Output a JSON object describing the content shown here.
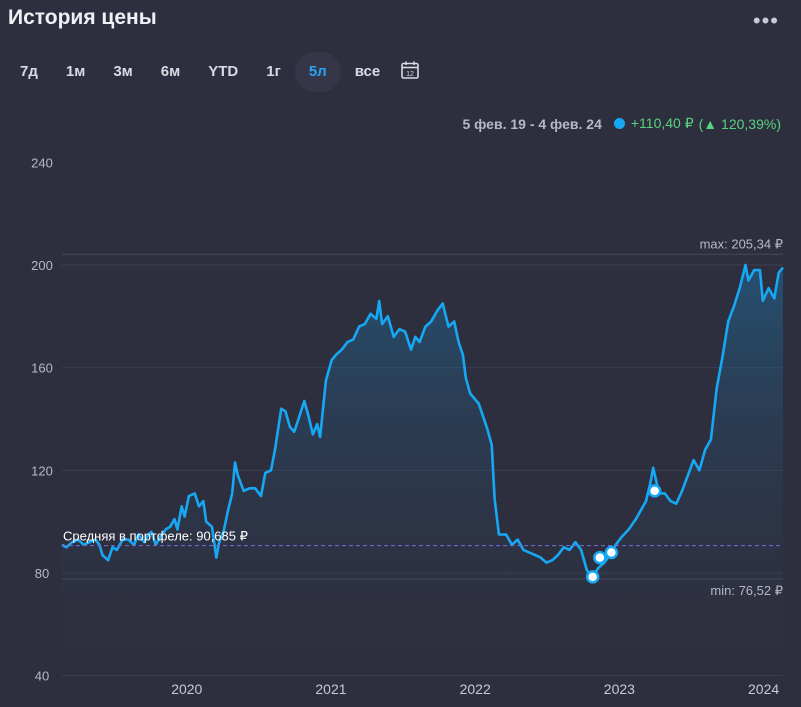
{
  "header": {
    "title": "История цены",
    "menu_icon": "more-dots-icon"
  },
  "ranges": [
    {
      "label": "7д",
      "active": false
    },
    {
      "label": "1м",
      "active": false
    },
    {
      "label": "3м",
      "active": false
    },
    {
      "label": "6м",
      "active": false
    },
    {
      "label": "YTD",
      "active": false
    },
    {
      "label": "1г",
      "active": false
    },
    {
      "label": "5л",
      "active": true
    },
    {
      "label": "все",
      "active": false
    }
  ],
  "calendar_icon": "calendar-icon",
  "calendar_day": "12",
  "summary": {
    "period": "5 фев. 19 - 4 фев. 24",
    "change": "+110,40 ₽",
    "change_pct": "120,39%",
    "change_open": "(",
    "change_close": ")"
  },
  "colors": {
    "line": "#17a8f5",
    "positive": "#58d27d",
    "average": "#6f66c9",
    "background": "#2e2f3e"
  },
  "chart_data": {
    "type": "area",
    "ylim": [
      40,
      250
    ],
    "yticks": [
      40,
      80,
      120,
      160,
      200,
      240
    ],
    "xticks": [
      {
        "label": "2020",
        "x": 2020.0
      },
      {
        "label": "2021",
        "x": 2021.0
      },
      {
        "label": "2022",
        "x": 2022.0
      },
      {
        "label": "2023",
        "x": 2023.0
      },
      {
        "label": "2024",
        "x": 2024.0
      }
    ],
    "grid": true,
    "max_label": "max: 205,34 ₽",
    "max_value": 205.34,
    "min_label": "min: 76,52 ₽",
    "min_value": 76.52,
    "average_label": "Средняя в портфеле: 90,685 ₽",
    "average_value": 90.685,
    "series": [
      {
        "points": [
          [
            2019.1,
            91
          ],
          [
            2019.13,
            90
          ],
          [
            2019.17,
            92
          ],
          [
            2019.21,
            93
          ],
          [
            2019.25,
            91
          ],
          [
            2019.29,
            92
          ],
          [
            2019.33,
            93
          ],
          [
            2019.36,
            91
          ],
          [
            2019.38,
            87
          ],
          [
            2019.42,
            85
          ],
          [
            2019.45,
            90
          ],
          [
            2019.48,
            89
          ],
          [
            2019.52,
            93
          ],
          [
            2019.56,
            93
          ],
          [
            2019.6,
            91
          ],
          [
            2019.63,
            95
          ],
          [
            2019.67,
            92
          ],
          [
            2019.7,
            95
          ],
          [
            2019.72,
            96
          ],
          [
            2019.75,
            91
          ],
          [
            2019.78,
            94
          ],
          [
            2019.82,
            97
          ],
          [
            2019.85,
            98
          ],
          [
            2019.88,
            101
          ],
          [
            2019.9,
            97
          ],
          [
            2019.93,
            106
          ],
          [
            2019.95,
            102
          ],
          [
            2019.98,
            110
          ],
          [
            2020.02,
            111
          ],
          [
            2020.05,
            106
          ],
          [
            2020.08,
            108
          ],
          [
            2020.1,
            100
          ],
          [
            2020.14,
            98
          ],
          [
            2020.17,
            86
          ],
          [
            2020.19,
            92
          ],
          [
            2020.22,
            96
          ],
          [
            2020.25,
            104
          ],
          [
            2020.28,
            111
          ],
          [
            2020.3,
            123
          ],
          [
            2020.32,
            118
          ],
          [
            2020.36,
            112
          ],
          [
            2020.4,
            113
          ],
          [
            2020.44,
            113
          ],
          [
            2020.48,
            110
          ],
          [
            2020.51,
            119
          ],
          [
            2020.55,
            120
          ],
          [
            2020.58,
            129
          ],
          [
            2020.62,
            144
          ],
          [
            2020.65,
            143
          ],
          [
            2020.68,
            137
          ],
          [
            2020.71,
            135
          ],
          [
            2020.74,
            140
          ],
          [
            2020.78,
            147
          ],
          [
            2020.81,
            141
          ],
          [
            2020.84,
            134
          ],
          [
            2020.87,
            138
          ],
          [
            2020.89,
            133
          ],
          [
            2020.93,
            155
          ],
          [
            2020.97,
            163
          ],
          [
            2021.0,
            165
          ],
          [
            2021.04,
            167
          ],
          [
            2021.08,
            170
          ],
          [
            2021.12,
            171
          ],
          [
            2021.16,
            176
          ],
          [
            2021.2,
            177
          ],
          [
            2021.24,
            181
          ],
          [
            2021.28,
            179
          ],
          [
            2021.3,
            186
          ],
          [
            2021.32,
            177
          ],
          [
            2021.36,
            180
          ],
          [
            2021.4,
            172
          ],
          [
            2021.44,
            175
          ],
          [
            2021.48,
            174
          ],
          [
            2021.52,
            167
          ],
          [
            2021.55,
            172
          ],
          [
            2021.58,
            170
          ],
          [
            2021.62,
            176
          ],
          [
            2021.66,
            178
          ],
          [
            2021.7,
            182
          ],
          [
            2021.74,
            185
          ],
          [
            2021.78,
            176
          ],
          [
            2021.82,
            178
          ],
          [
            2021.85,
            170
          ],
          [
            2021.88,
            165
          ],
          [
            2021.9,
            156
          ],
          [
            2021.93,
            150
          ],
          [
            2021.96,
            148
          ],
          [
            2021.99,
            146
          ],
          [
            2022.02,
            141
          ],
          [
            2022.05,
            136
          ],
          [
            2022.08,
            130
          ],
          [
            2022.1,
            109
          ],
          [
            2022.13,
            95
          ],
          [
            2022.18,
            95
          ],
          [
            2022.22,
            91
          ],
          [
            2022.26,
            93
          ],
          [
            2022.3,
            89
          ],
          [
            2022.34,
            88
          ],
          [
            2022.38,
            87
          ],
          [
            2022.42,
            86
          ],
          [
            2022.46,
            84
          ],
          [
            2022.5,
            85
          ],
          [
            2022.54,
            87
          ],
          [
            2022.58,
            90
          ],
          [
            2022.62,
            89
          ],
          [
            2022.66,
            92
          ],
          [
            2022.7,
            89
          ],
          [
            2022.74,
            81
          ],
          [
            2022.78,
            78.5
          ],
          [
            2022.82,
            82
          ],
          [
            2022.86,
            84
          ],
          [
            2022.9,
            87
          ],
          [
            2022.94,
            91
          ],
          [
            2022.98,
            94
          ],
          [
            2023.03,
            97
          ],
          [
            2023.08,
            101
          ],
          [
            2023.12,
            105
          ],
          [
            2023.15,
            108
          ],
          [
            2023.18,
            115
          ],
          [
            2023.2,
            121
          ],
          [
            2023.24,
            111
          ],
          [
            2023.28,
            111
          ],
          [
            2023.32,
            108
          ],
          [
            2023.36,
            107
          ],
          [
            2023.4,
            112
          ],
          [
            2023.44,
            118
          ],
          [
            2023.48,
            124
          ],
          [
            2023.52,
            120
          ],
          [
            2023.56,
            128
          ],
          [
            2023.6,
            132
          ],
          [
            2023.64,
            152
          ],
          [
            2023.68,
            164
          ],
          [
            2023.72,
            178
          ],
          [
            2023.76,
            184
          ],
          [
            2023.8,
            191
          ],
          [
            2023.84,
            200
          ],
          [
            2023.86,
            194
          ],
          [
            2023.9,
            198
          ],
          [
            2023.94,
            198
          ],
          [
            2023.96,
            186
          ],
          [
            2024.0,
            191
          ],
          [
            2024.04,
            187
          ],
          [
            2024.07,
            197
          ],
          [
            2024.1,
            199
          ]
        ]
      }
    ],
    "markers": [
      {
        "x": 2022.78,
        "y": 78.5
      },
      {
        "x": 2022.83,
        "y": 86
      },
      {
        "x": 2022.91,
        "y": 88
      },
      {
        "x": 2023.21,
        "y": 112
      }
    ]
  }
}
